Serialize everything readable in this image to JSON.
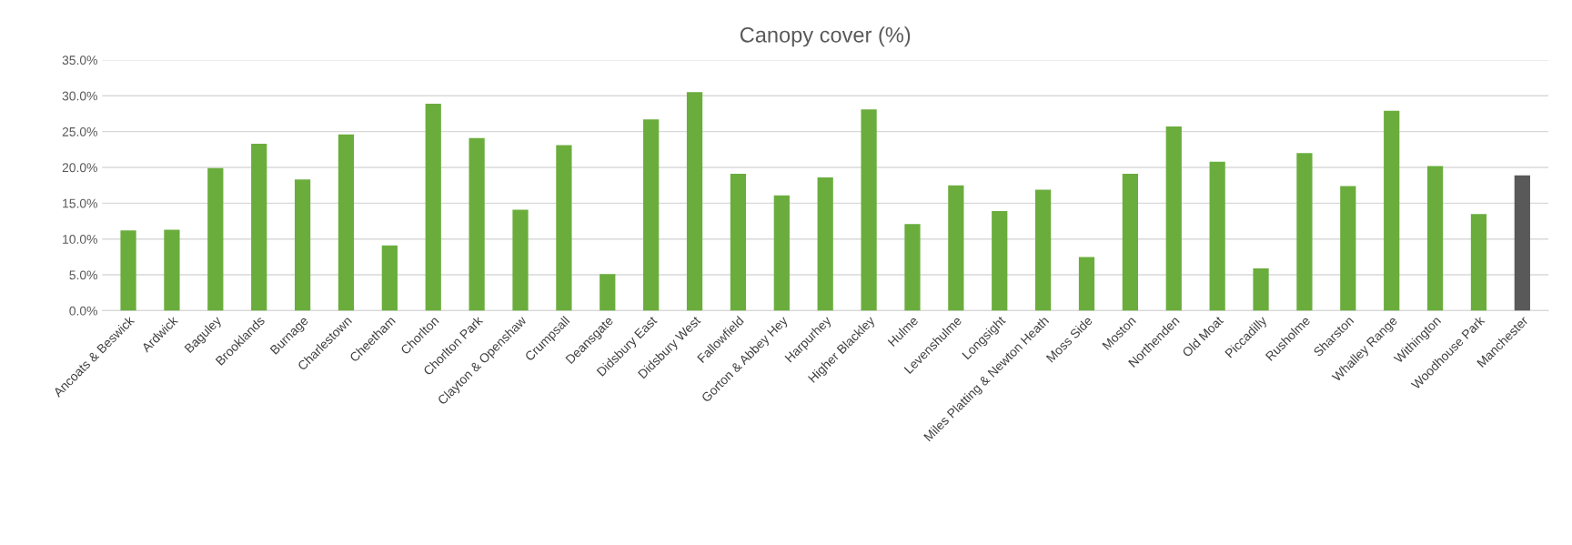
{
  "chart_data": {
    "type": "bar",
    "title": "Canopy cover (%)",
    "categories": [
      "Ancoats & Beswick",
      "Ardwick",
      "Baguley",
      "Brooklands",
      "Burnage",
      "Charlestown",
      "Cheetham",
      "Chorlton",
      "Chorlton Park",
      "Clayton & Openshaw",
      "Crumpsall",
      "Deansgate",
      "Didsbury East",
      "Didsbury West",
      "Fallowfield",
      "Gorton & Abbey Hey",
      "Harpurhey",
      "Higher Blackley",
      "Hulme",
      "Levenshulme",
      "Longsight",
      "Miles Platting & Newton Heath",
      "Moss Side",
      "Moston",
      "Northenden",
      "Old Moat",
      "Piccadilly",
      "Rusholme",
      "Sharston",
      "Whalley Range",
      "Withington",
      "Woodhouse Park",
      "Manchester"
    ],
    "values": [
      11.2,
      11.3,
      19.9,
      23.3,
      18.3,
      24.6,
      9.1,
      28.9,
      24.1,
      14.1,
      23.1,
      5.1,
      26.7,
      30.5,
      19.1,
      16.1,
      18.6,
      28.1,
      12.1,
      17.5,
      13.9,
      16.9,
      7.5,
      19.1,
      25.7,
      20.8,
      5.9,
      22.0,
      17.4,
      27.9,
      20.2,
      13.5,
      18.9
    ],
    "colors": [
      "#6aad3d",
      "#6aad3d",
      "#6aad3d",
      "#6aad3d",
      "#6aad3d",
      "#6aad3d",
      "#6aad3d",
      "#6aad3d",
      "#6aad3d",
      "#6aad3d",
      "#6aad3d",
      "#6aad3d",
      "#6aad3d",
      "#6aad3d",
      "#6aad3d",
      "#6aad3d",
      "#6aad3d",
      "#6aad3d",
      "#6aad3d",
      "#6aad3d",
      "#6aad3d",
      "#6aad3d",
      "#6aad3d",
      "#6aad3d",
      "#6aad3d",
      "#6aad3d",
      "#6aad3d",
      "#6aad3d",
      "#6aad3d",
      "#6aad3d",
      "#6aad3d",
      "#6aad3d",
      "#595959"
    ],
    "ylim": [
      0,
      35
    ],
    "yticks": [
      {
        "value": 0,
        "label": "0.0%"
      },
      {
        "value": 5,
        "label": "5.0%"
      },
      {
        "value": 10,
        "label": "10.0%"
      },
      {
        "value": 15,
        "label": "15.0%"
      },
      {
        "value": 20,
        "label": "20.0%"
      },
      {
        "value": 25,
        "label": "25.0%"
      },
      {
        "value": 30,
        "label": "30.0%"
      },
      {
        "value": 35,
        "label": "35.0%"
      }
    ],
    "grid": "y",
    "legend": false
  }
}
